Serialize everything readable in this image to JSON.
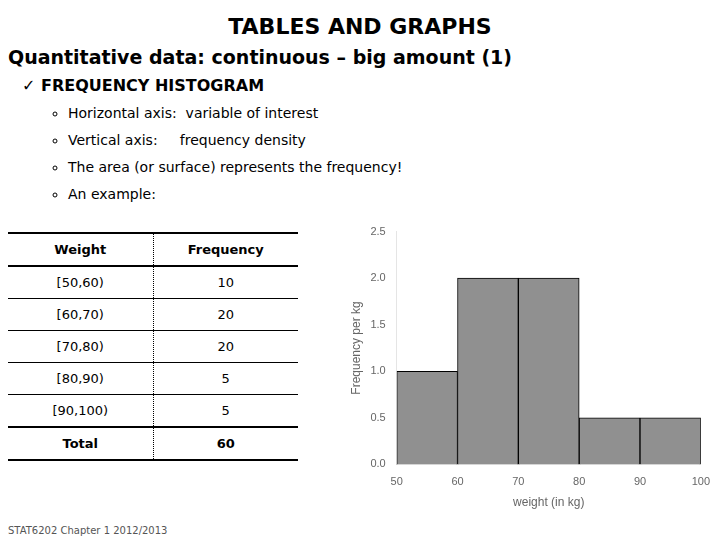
{
  "chart_data": {
    "type": "histogram",
    "title": "TABLES AND GRAPHS",
    "subtitle": "Quantitative data: continuous – big amount (1)",
    "heading": "✓ FREQUENCY HISTOGRAM",
    "bullets": [
      "Horizontal axis:  variable of interest",
      "Vertical axis:     frequency density",
      "The area (or surface) represents the frequency!",
      "An example:"
    ],
    "table": {
      "headers": [
        "Weight",
        "Frequency"
      ],
      "rows": [
        [
          "[50,60)",
          "10"
        ],
        [
          "[60,70)",
          "20"
        ],
        [
          "[70,80)",
          "20"
        ],
        [
          "[80,90)",
          "5"
        ],
        [
          "[90,100)",
          "5"
        ]
      ],
      "total": [
        "Total",
        "60"
      ]
    },
    "bins": [
      50,
      60,
      70,
      80,
      90,
      100
    ],
    "values": [
      1.0,
      2.0,
      2.0,
      0.5,
      0.5
    ],
    "color": "#909090",
    "xlabel": "weight (in kg)",
    "ylabel": "Frequency per kg",
    "xlim": [
      50,
      100
    ],
    "ylim": [
      0,
      2.5
    ],
    "xticks": [
      50,
      60,
      70,
      80,
      90,
      100
    ],
    "yticks": [
      {
        "value": 0,
        "label": "0.0"
      },
      0.5,
      {
        "value": 1,
        "label": "1.0"
      },
      1.5,
      {
        "value": 2,
        "label": "2.0"
      },
      2.5
    ],
    "grid": false,
    "footer": "STAT6202 Chapter 1 2012/2013"
  }
}
